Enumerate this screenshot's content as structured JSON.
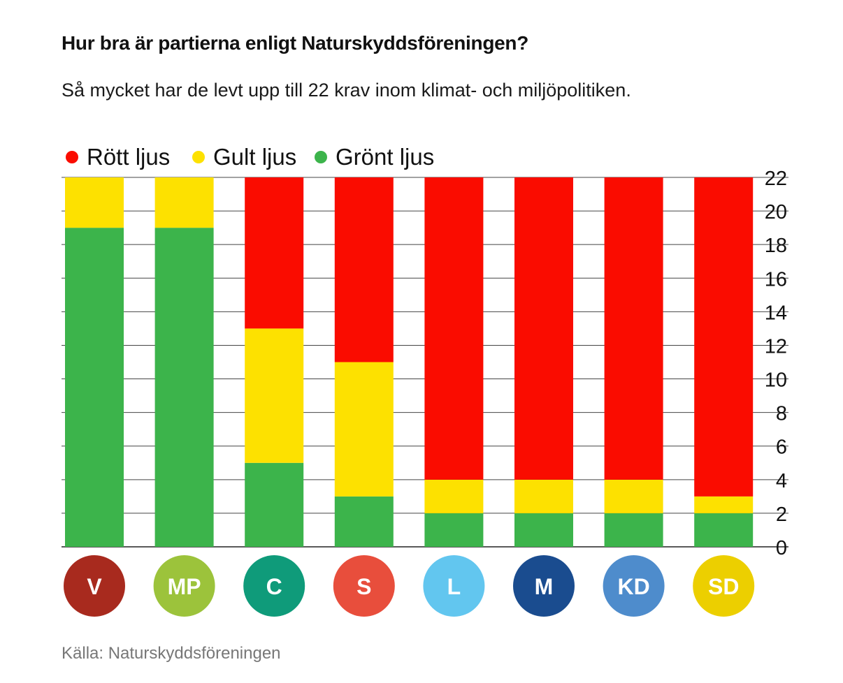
{
  "title": "Hur bra är partierna enligt Naturskyddsföreningen?",
  "subtitle": "Så mycket har de levt upp till 22 krav inom klimat- och miljöpolitiken.",
  "source": "Källa: Naturskyddsföreningen",
  "colors": {
    "red": "#fa0c00",
    "yellow": "#fde100",
    "green": "#3cb44b"
  },
  "chart_data": {
    "type": "bar",
    "stacked": true,
    "categories": [
      "V",
      "MP",
      "C",
      "S",
      "L",
      "M",
      "KD",
      "SD"
    ],
    "series": [
      {
        "name": "Grönt ljus",
        "color": "#3cb44b",
        "values": [
          19,
          19,
          5,
          3,
          2,
          2,
          2,
          2
        ]
      },
      {
        "name": "Gult ljus",
        "color": "#fde100",
        "values": [
          3,
          3,
          8,
          8,
          2,
          2,
          2,
          1
        ]
      },
      {
        "name": "Rött ljus",
        "color": "#fa0c00",
        "values": [
          0,
          0,
          9,
          11,
          18,
          18,
          18,
          19
        ]
      }
    ],
    "legend_order": [
      "Rött ljus",
      "Gult ljus",
      "Grönt ljus"
    ],
    "legend_placement": "top-left",
    "ylim": [
      0,
      22
    ],
    "yticks": [
      0,
      2,
      4,
      6,
      8,
      10,
      12,
      14,
      16,
      18,
      20,
      22
    ],
    "ytick_side": "right",
    "grid": true,
    "party_badges": [
      {
        "label": "V",
        "color": "#a82a1e"
      },
      {
        "label": "MP",
        "color": "#9cc33b"
      },
      {
        "label": "C",
        "color": "#0f9b7a"
      },
      {
        "label": "S",
        "color": "#e84e3c"
      },
      {
        "label": "L",
        "color": "#62c6ef"
      },
      {
        "label": "M",
        "color": "#1a4c8f"
      },
      {
        "label": "KD",
        "color": "#4e8ccc"
      },
      {
        "label": "SD",
        "color": "#eccf00"
      }
    ]
  }
}
